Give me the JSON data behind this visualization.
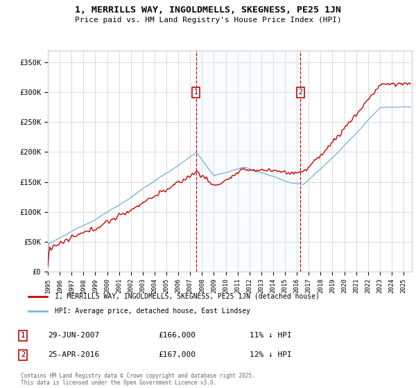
{
  "title": "1, MERRILLS WAY, INGOLDMELLS, SKEGNESS, PE25 1JN",
  "subtitle": "Price paid vs. HM Land Registry's House Price Index (HPI)",
  "ylim": [
    0,
    370000
  ],
  "yticks": [
    0,
    50000,
    100000,
    150000,
    200000,
    250000,
    300000,
    350000
  ],
  "ytick_labels": [
    "£0",
    "£50K",
    "£100K",
    "£150K",
    "£200K",
    "£250K",
    "£300K",
    "£350K"
  ],
  "legend_entry1": "1, MERRILLS WAY, INGOLDMELLS, SKEGNESS, PE25 1JN (detached house)",
  "legend_entry2": "HPI: Average price, detached house, East Lindsey",
  "sale1_year": 2007.49,
  "sale1_label": "1",
  "sale1_price": 166000,
  "sale2_year": 2016.31,
  "sale2_label": "2",
  "sale2_price": 167000,
  "annotation1": "29-JUN-2007",
  "annotation1_price": "£166,000",
  "annotation1_pct": "11% ↓ HPI",
  "annotation2": "25-APR-2016",
  "annotation2_price": "£167,000",
  "annotation2_pct": "12% ↓ HPI",
  "copyright": "Contains HM Land Registry data © Crown copyright and database right 2025.\nThis data is licensed under the Open Government Licence v3.0.",
  "hpi_color": "#7ab8d9",
  "price_color": "#cc0000",
  "marker_color": "#cc0000",
  "vline_color": "#cc0000",
  "shade_color": "#ddeeff",
  "background_color": "#ffffff",
  "grid_color": "#cccccc",
  "xlim_start": 1995,
  "xlim_end": 2025.7
}
